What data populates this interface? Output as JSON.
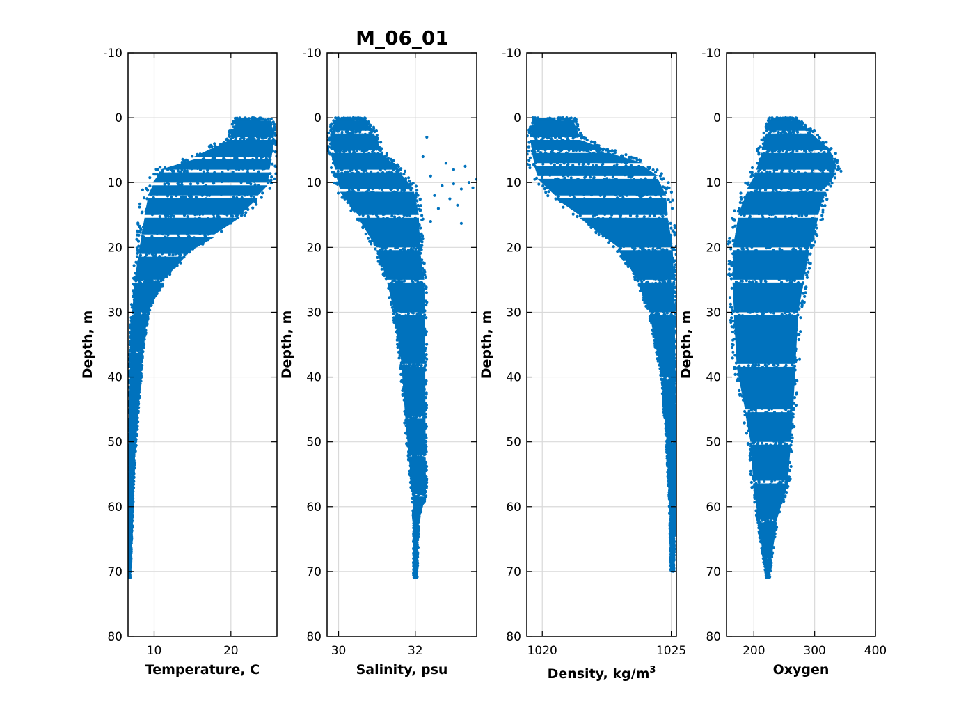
{
  "figure_title": "M_06_01",
  "colors": {
    "series": "#0072BD",
    "grid": "#d9d9d9",
    "axes": "#000000"
  },
  "chart_data": [
    {
      "type": "scatter",
      "xlabel": "Temperature, C",
      "xlabel_sup": "",
      "ylabel": "Depth, m",
      "xlim": [
        6.6,
        26.0
      ],
      "ylim": [
        80,
        -10
      ],
      "y_reversed": true,
      "grid": true,
      "xticks": [
        10,
        20
      ],
      "yticks": [
        -10,
        0,
        10,
        20,
        30,
        40,
        50,
        60,
        70,
        80
      ],
      "profile": [
        {
          "depth": 0,
          "x_min": 20.5,
          "x_max": 25.5
        },
        {
          "depth": 3,
          "x_min": 19.5,
          "x_max": 26.0
        },
        {
          "depth": 6,
          "x_min": 14.5,
          "x_max": 26.0
        },
        {
          "depth": 8,
          "x_min": 9.8,
          "x_max": 26.0
        },
        {
          "depth": 10,
          "x_min": 8.8,
          "x_max": 25.8
        },
        {
          "depth": 12,
          "x_min": 8.2,
          "x_max": 24.5
        },
        {
          "depth": 15,
          "x_min": 7.9,
          "x_max": 22.0
        },
        {
          "depth": 18,
          "x_min": 7.7,
          "x_max": 18.5
        },
        {
          "depth": 21,
          "x_min": 7.5,
          "x_max": 14.5
        },
        {
          "depth": 25,
          "x_min": 7.2,
          "x_max": 11.5
        },
        {
          "depth": 30,
          "x_min": 7.0,
          "x_max": 9.3
        },
        {
          "depth": 36,
          "x_min": 6.8,
          "x_max": 8.6
        },
        {
          "depth": 45,
          "x_min": 6.7,
          "x_max": 8.0
        },
        {
          "depth": 55,
          "x_min": 6.6,
          "x_max": 7.4
        },
        {
          "depth": 65,
          "x_min": 6.6,
          "x_max": 7.1
        },
        {
          "depth": 71,
          "x_min": 6.6,
          "x_max": 6.9
        }
      ]
    },
    {
      "type": "scatter",
      "xlabel": "Salinity, psu",
      "xlabel_sup": "",
      "ylabel": "Depth, m",
      "xlim": [
        29.7,
        33.6
      ],
      "ylim": [
        80,
        -10
      ],
      "y_reversed": true,
      "grid": true,
      "xticks": [
        30,
        32
      ],
      "yticks": [
        -10,
        0,
        10,
        20,
        30,
        40,
        50,
        60,
        70,
        80
      ],
      "profile": [
        {
          "depth": 0,
          "x_min": 29.9,
          "x_max": 30.7
        },
        {
          "depth": 2,
          "x_min": 29.7,
          "x_max": 31.0
        },
        {
          "depth": 5,
          "x_min": 29.7,
          "x_max": 31.2
        },
        {
          "depth": 8,
          "x_min": 29.8,
          "x_max": 31.7
        },
        {
          "depth": 11,
          "x_min": 29.9,
          "x_max": 32.1
        },
        {
          "depth": 15,
          "x_min": 30.4,
          "x_max": 32.2
        },
        {
          "depth": 20,
          "x_min": 30.9,
          "x_max": 32.2
        },
        {
          "depth": 25,
          "x_min": 31.2,
          "x_max": 32.3
        },
        {
          "depth": 30,
          "x_min": 31.4,
          "x_max": 32.3
        },
        {
          "depth": 38,
          "x_min": 31.6,
          "x_max": 32.3
        },
        {
          "depth": 46,
          "x_min": 31.7,
          "x_max": 32.3
        },
        {
          "depth": 52,
          "x_min": 31.8,
          "x_max": 32.3
        },
        {
          "depth": 58,
          "x_min": 31.9,
          "x_max": 32.3
        },
        {
          "depth": 62,
          "x_min": 31.95,
          "x_max": 32.1
        },
        {
          "depth": 71,
          "x_min": 31.95,
          "x_max": 32.05
        }
      ],
      "extra_points": [
        {
          "x": 33.4,
          "depth": 10.0
        },
        {
          "x": 33.6,
          "depth": 9.5
        },
        {
          "x": 33.2,
          "depth": 11.0
        },
        {
          "x": 33.0,
          "depth": 8.0
        },
        {
          "x": 32.9,
          "depth": 12.5
        },
        {
          "x": 32.6,
          "depth": 14.0
        },
        {
          "x": 32.4,
          "depth": 16.0
        },
        {
          "x": 33.2,
          "depth": 16.3
        },
        {
          "x": 32.3,
          "depth": 3.0
        },
        {
          "x": 32.8,
          "depth": 7.0
        },
        {
          "x": 33.3,
          "depth": 7.5
        },
        {
          "x": 33.5,
          "depth": 10.8
        },
        {
          "x": 32.7,
          "depth": 10.5
        },
        {
          "x": 32.5,
          "depth": 12.0
        },
        {
          "x": 33.1,
          "depth": 13.5
        },
        {
          "x": 32.2,
          "depth": 6.0
        },
        {
          "x": 32.4,
          "depth": 9.0
        },
        {
          "x": 33.0,
          "depth": 10.2
        }
      ]
    },
    {
      "type": "scatter",
      "xlabel": "Density, kg/m",
      "xlabel_sup": "3",
      "ylabel": "Depth, m",
      "xlim": [
        1019.4,
        1025.2
      ],
      "ylim": [
        80,
        -10
      ],
      "y_reversed": true,
      "grid": true,
      "xticks": [
        1020,
        1025
      ],
      "yticks": [
        -10,
        0,
        10,
        20,
        30,
        40,
        50,
        60,
        70,
        80
      ],
      "profile": [
        {
          "depth": 0,
          "x_min": 1019.6,
          "x_max": 1021.3
        },
        {
          "depth": 3,
          "x_min": 1019.4,
          "x_max": 1021.6
        },
        {
          "depth": 5,
          "x_min": 1019.4,
          "x_max": 1022.8
        },
        {
          "depth": 7,
          "x_min": 1019.4,
          "x_max": 1024.2
        },
        {
          "depth": 9,
          "x_min": 1019.5,
          "x_max": 1024.8
        },
        {
          "depth": 12,
          "x_min": 1020.2,
          "x_max": 1025.1
        },
        {
          "depth": 15,
          "x_min": 1021.2,
          "x_max": 1025.1
        },
        {
          "depth": 20,
          "x_min": 1022.8,
          "x_max": 1025.2
        },
        {
          "depth": 25,
          "x_min": 1023.6,
          "x_max": 1025.2
        },
        {
          "depth": 30,
          "x_min": 1024.1,
          "x_max": 1025.2
        },
        {
          "depth": 40,
          "x_min": 1024.6,
          "x_max": 1025.2
        },
        {
          "depth": 50,
          "x_min": 1024.8,
          "x_max": 1025.2
        },
        {
          "depth": 58,
          "x_min": 1024.9,
          "x_max": 1025.2
        },
        {
          "depth": 64,
          "x_min": 1024.95,
          "x_max": 1025.15
        },
        {
          "depth": 70,
          "x_min": 1024.98,
          "x_max": 1025.1
        }
      ]
    },
    {
      "type": "scatter",
      "xlabel": "Oxygen",
      "xlabel_sup": "",
      "ylabel": "Depth, m",
      "xlim": [
        155,
        400
      ],
      "ylim": [
        80,
        -10
      ],
      "y_reversed": true,
      "grid": true,
      "xticks": [
        200,
        300,
        400
      ],
      "yticks": [
        -10,
        0,
        10,
        20,
        30,
        40,
        50,
        60,
        70,
        80
      ],
      "profile": [
        {
          "depth": 0,
          "x_min": 225,
          "x_max": 270
        },
        {
          "depth": 2,
          "x_min": 215,
          "x_max": 300
        },
        {
          "depth": 5,
          "x_min": 205,
          "x_max": 335
        },
        {
          "depth": 8,
          "x_min": 195,
          "x_max": 345
        },
        {
          "depth": 11,
          "x_min": 180,
          "x_max": 325
        },
        {
          "depth": 15,
          "x_min": 165,
          "x_max": 315
        },
        {
          "depth": 20,
          "x_min": 157,
          "x_max": 300
        },
        {
          "depth": 25,
          "x_min": 157,
          "x_max": 290
        },
        {
          "depth": 30,
          "x_min": 160,
          "x_max": 280
        },
        {
          "depth": 38,
          "x_min": 165,
          "x_max": 275
        },
        {
          "depth": 45,
          "x_min": 180,
          "x_max": 270
        },
        {
          "depth": 50,
          "x_min": 190,
          "x_max": 265
        },
        {
          "depth": 56,
          "x_min": 195,
          "x_max": 260
        },
        {
          "depth": 62,
          "x_min": 205,
          "x_max": 240
        },
        {
          "depth": 68,
          "x_min": 215,
          "x_max": 230
        },
        {
          "depth": 71,
          "x_min": 220,
          "x_max": 226
        }
      ]
    }
  ]
}
